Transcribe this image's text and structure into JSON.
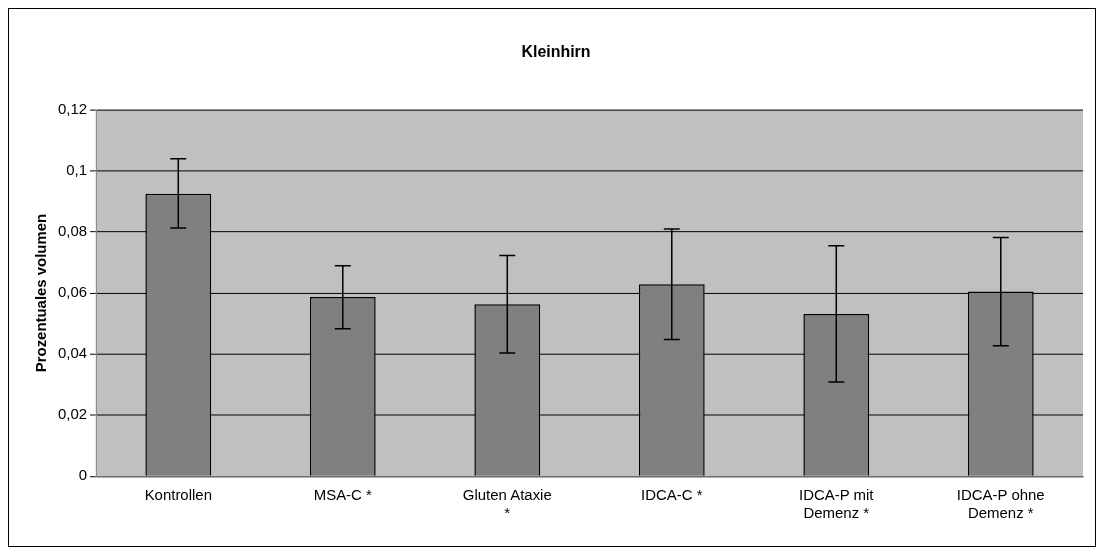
{
  "chart_data": {
    "type": "bar",
    "title": "Kleinhirn",
    "ylabel": "Prozentuales volumen",
    "categories": [
      "Kontrollen",
      "MSA-C *",
      "Gluten Ataxie *",
      "IDCA-C *",
      "IDCA-P mit Demenz *",
      "IDCA-P ohne Demenz *"
    ],
    "values": [
      0.0925,
      0.0587,
      0.0563,
      0.0629,
      0.0531,
      0.0605
    ],
    "errors": [
      [
        0.0813,
        0.104
      ],
      [
        0.0483,
        0.0689
      ],
      [
        0.0404,
        0.0723
      ],
      [
        0.0448,
        0.081
      ],
      [
        0.0309,
        0.0755
      ],
      [
        0.0427,
        0.0782
      ]
    ],
    "color": "#808080",
    "ylim": [
      0,
      0.12
    ],
    "yticks": [
      {
        "value": 0,
        "label": "0"
      },
      {
        "value": 0.02,
        "label": "0,02"
      },
      {
        "value": 0.04,
        "label": "0,04"
      },
      {
        "value": 0.06,
        "label": "0,06"
      },
      {
        "value": 0.08,
        "label": "0,08"
      },
      {
        "value": 0.1,
        "label": "0,1"
      },
      {
        "value": 0.12,
        "label": "0,12"
      }
    ],
    "grid": "y",
    "legend": false
  }
}
